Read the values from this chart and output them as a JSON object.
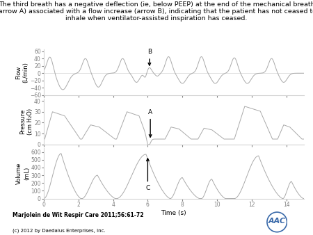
{
  "title_line1": "The third breath has a negative deflection (ie, below PEEP) at the end of the mechanical breath",
  "title_line2": "(arrow A) associated with a flow increase (arrow B), indicating that the patient has not ceased to",
  "title_line3": "inhale when ventilator-assisted inspiration has ceased.",
  "title_fontsize": 6.8,
  "bg_color": "#ffffff",
  "line_color": "#aaaaaa",
  "xlabel": "Time (s)",
  "flow_ylabel": "Flow\n(L/min)",
  "pressure_ylabel": "Pressure\n(cm H₂O)",
  "volume_ylabel": "Volume\n(mL)",
  "xlim": [
    0,
    15
  ],
  "flow_ylim": [
    -60,
    65
  ],
  "pressure_ylim": [
    0,
    42
  ],
  "volume_ylim": [
    0,
    650
  ],
  "flow_yticks": [
    -60,
    -40,
    -20,
    0,
    20,
    40,
    60
  ],
  "pressure_yticks": [
    0,
    10,
    20,
    30,
    40
  ],
  "volume_yticks": [
    0,
    100,
    200,
    300,
    400,
    500,
    600
  ],
  "xticks": [
    0,
    2,
    4,
    6,
    8,
    10,
    12,
    14
  ],
  "citation": "Marjolein de Wit Respir Care 2011;56:61-72",
  "copyright": "(c) 2012 by Daedalus Enterprises, Inc."
}
